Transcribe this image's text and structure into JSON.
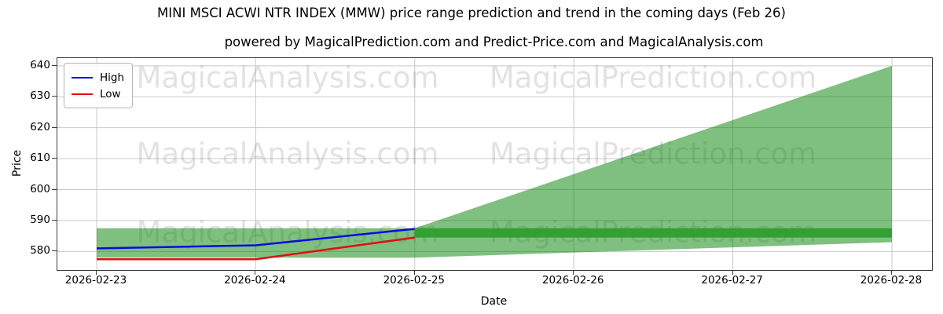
{
  "figure": {
    "title": "MINI MSCI ACWI NTR INDEX (MMW) price range prediction and trend in the coming days (Feb 26)",
    "subtitle": "powered by MagicalPrediction.com and Predict-Price.com and MagicalAnalysis.com"
  },
  "legend": {
    "items": [
      {
        "label": "High",
        "color": "#0a0ae0"
      },
      {
        "label": "Low",
        "color": "#e01010"
      }
    ]
  },
  "watermarks": {
    "left_text": "MagicalAnalysis.com",
    "right_text": "MagicalPrediction.com",
    "color": "#808080"
  },
  "chart_data": {
    "type": "line",
    "title": "MINI MSCI ACWI NTR INDEX (MMW) price range prediction and trend in the coming days (Feb 26)",
    "xlabel": "Date",
    "ylabel": "Price",
    "x_categories": [
      "2026-02-23",
      "2026-02-24",
      "2026-02-25",
      "2026-02-26",
      "2026-02-27",
      "2026-02-28"
    ],
    "yticks": [
      580,
      590,
      600,
      610,
      620,
      630,
      640
    ],
    "ylim": [
      574,
      642.5
    ],
    "grid": true,
    "legend_position": "upper left",
    "series": [
      {
        "name": "High",
        "color": "#0a0ae0",
        "x": [
          "2026-02-23",
          "2026-02-24",
          "2026-02-25"
        ],
        "values": [
          581,
          582,
          587.3
        ]
      },
      {
        "name": "Low",
        "color": "#e01010",
        "x": [
          "2026-02-23",
          "2026-02-24",
          "2026-02-25"
        ],
        "values": [
          577.5,
          577.5,
          584.5
        ]
      }
    ],
    "bands": [
      {
        "name": "history-range-band",
        "color": "#008000",
        "opacity": 0.5,
        "x": [
          "2026-02-23",
          "2026-02-25"
        ],
        "low": [
          578,
          578
        ],
        "high": [
          587.5,
          587.5
        ]
      },
      {
        "name": "prediction-fan-band",
        "color": "#008000",
        "opacity": 0.5,
        "x": [
          "2026-02-25",
          "2026-02-28"
        ],
        "low": [
          578,
          583
        ],
        "high": [
          587.5,
          640
        ]
      },
      {
        "name": "target-range-band",
        "color": "#2f9e2f",
        "opacity": 0.95,
        "x": [
          "2026-02-25",
          "2026-02-28"
        ],
        "low": [
          584.5,
          584.5
        ],
        "high": [
          587.5,
          587.5
        ]
      }
    ]
  }
}
